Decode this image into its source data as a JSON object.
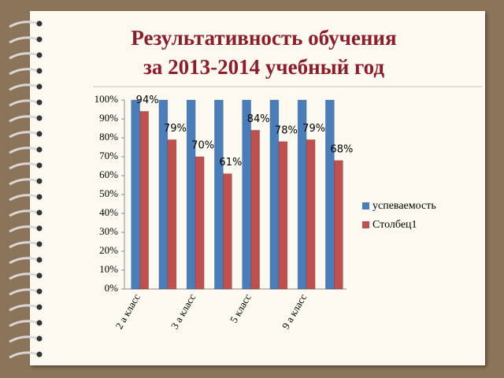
{
  "chart_data": {
    "type": "bar",
    "title": "Результативность  обучения\nза 2013-2014 учебный год",
    "categories": [
      "2 а класс",
      null,
      "3 а класс",
      null,
      "5 класс",
      null,
      "9 а класс",
      null
    ],
    "series": [
      {
        "name": "успеваемость",
        "color": "#4a7ebb",
        "values": [
          100,
          100,
          100,
          100,
          100,
          100,
          100,
          100
        ]
      },
      {
        "name": "Столбец1",
        "color": "#c0504d",
        "values": [
          94,
          79,
          70,
          61,
          84,
          78,
          79,
          68
        ],
        "value_labels": [
          "94%",
          "79%",
          "70%",
          "61%",
          "84%",
          "78%",
          "79%",
          "68%"
        ]
      }
    ],
    "ylim": [
      0,
      100
    ],
    "yticks": [
      {
        "value": 0,
        "label": "0%"
      },
      {
        "value": 10,
        "label": "10%"
      },
      {
        "value": 20,
        "label": "20%"
      },
      {
        "value": 30,
        "label": "30%"
      },
      {
        "value": 40,
        "label": "40%"
      },
      {
        "value": 50,
        "label": "50%"
      },
      {
        "value": 60,
        "label": "60%"
      },
      {
        "value": 70,
        "label": "70%"
      },
      {
        "value": 80,
        "label": "80%"
      },
      {
        "value": 90,
        "label": "90%"
      },
      {
        "value": 100,
        "label": "100%"
      }
    ],
    "legend": "right"
  }
}
